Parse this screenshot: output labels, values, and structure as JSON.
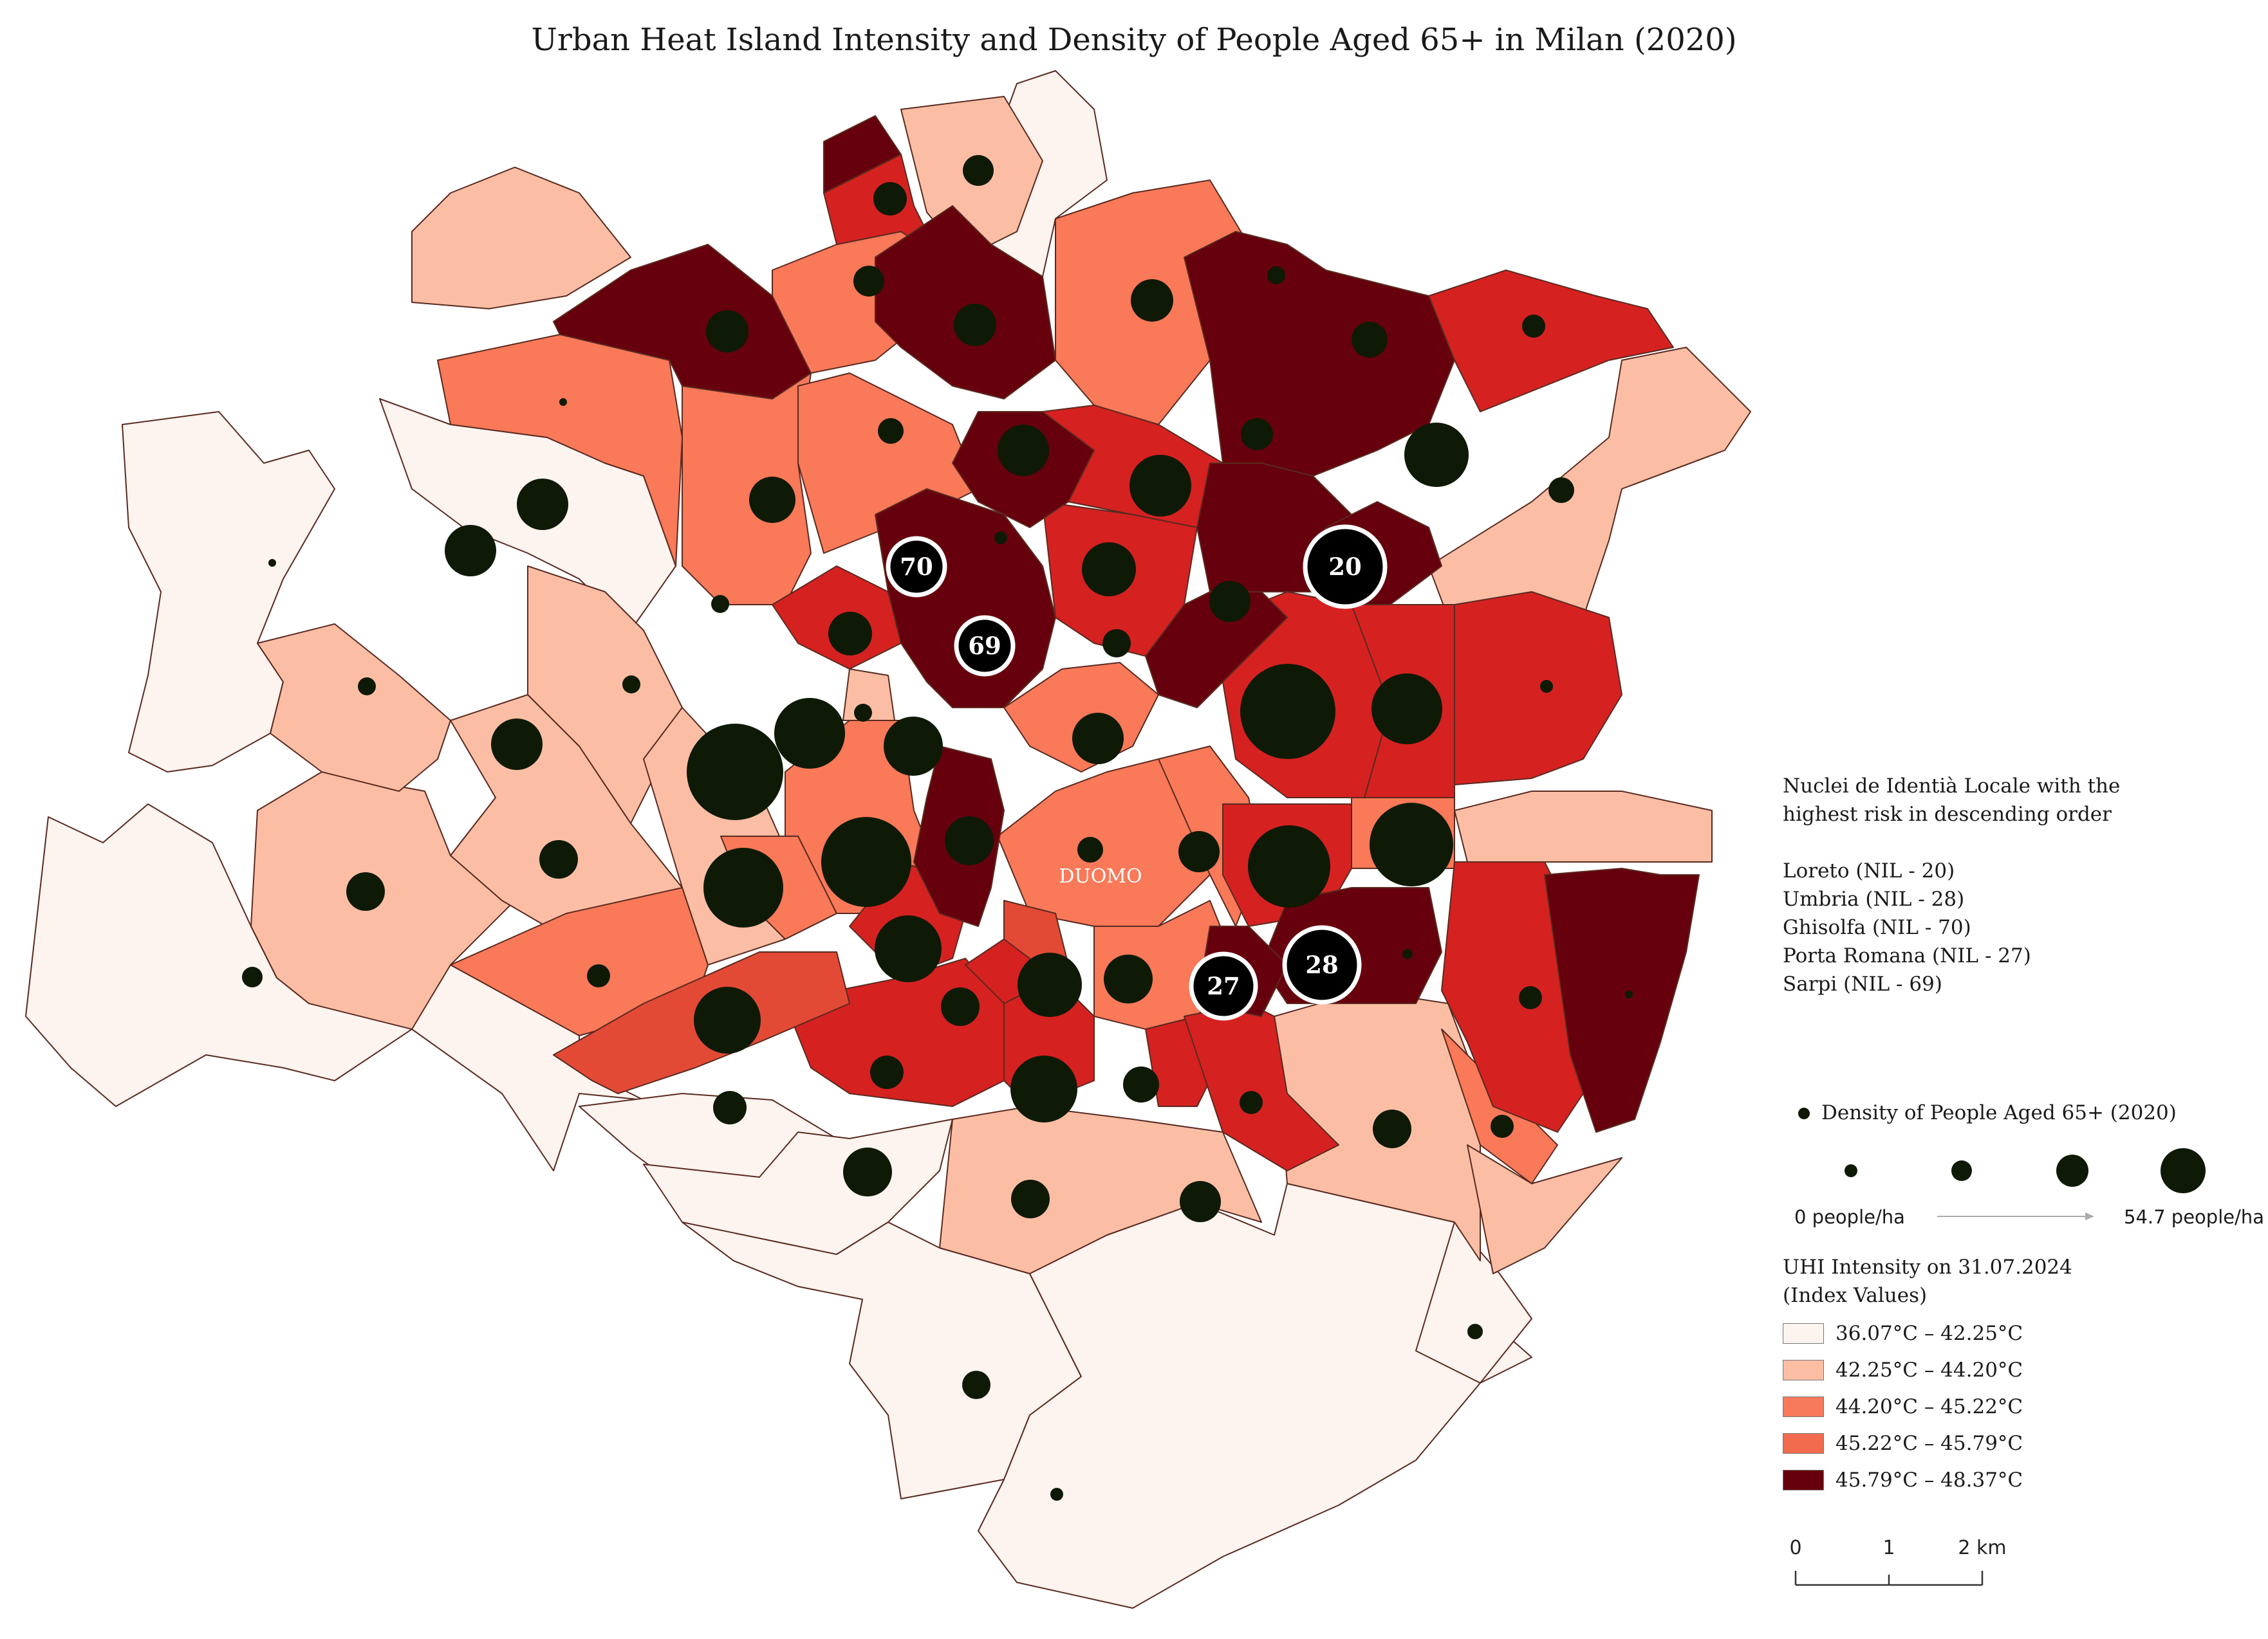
{
  "title": "Urban Heat Island Intensity and Density of People Aged 65+ in Milan (2020)",
  "center_label": "DUOMO",
  "risk_legend": {
    "heading_lines": [
      "Nuclei de Identià Locale with the",
      "highest risk in descending order"
    ],
    "items": [
      "Loreto (NIL - 20)",
      "Umbria (NIL - 28)",
      "Ghisolfa (NIL - 70)",
      "Porta Romana (NIL - 27)",
      "Sarpi (NIL - 69)"
    ]
  },
  "density_legend": {
    "label": "Density of People Aged 65+ (2020)",
    "min_label": "0 people/ha",
    "max_label": "54.7 people/ha",
    "max_value": 54.7
  },
  "uhi_legend": {
    "heading_lines": [
      "UHI Intensity on 31.07.2024",
      "(Index Values)"
    ],
    "classes": [
      {
        "label": "36.07°C – 42.25°C",
        "color": "#fdf3ef"
      },
      {
        "label": "42.25°C – 44.20°C",
        "color": "#fbbea5"
      },
      {
        "label": "44.20°C – 45.22°C",
        "color": "#f77a5c"
      },
      {
        "label": "45.22°C – 45.79°C",
        "color": "#f26b4f"
      },
      {
        "label": "45.79°C – 48.37°C",
        "color": "#67000d"
      }
    ]
  },
  "scale_bar": {
    "labels": [
      "0",
      "1",
      "2 km"
    ]
  },
  "fill_colors": {
    "c1": "#fdf3ef",
    "c2": "#fbbea5",
    "c3": "#f97959",
    "c4": "#d62121",
    "c5": "#67000d",
    "c4b": "#e34a36"
  },
  "highlighted_nil": [
    "70",
    "69",
    "20",
    "28",
    "27"
  ]
}
